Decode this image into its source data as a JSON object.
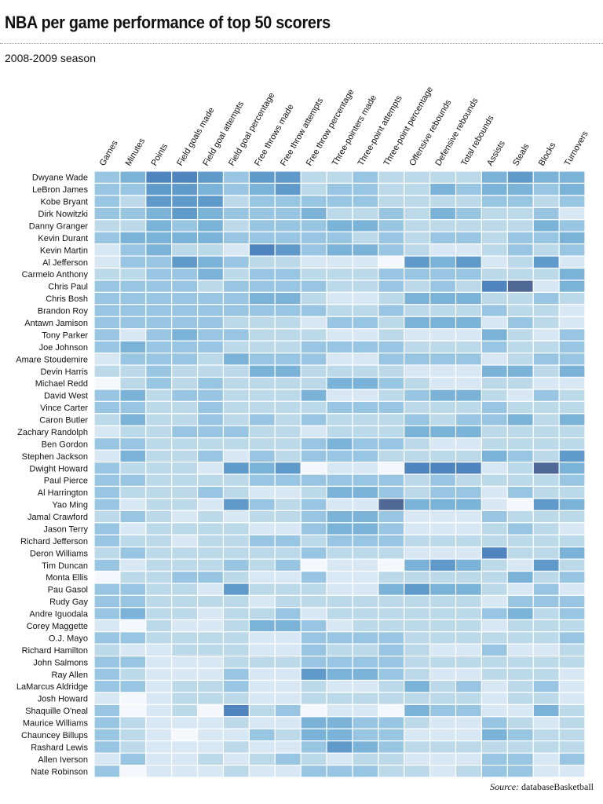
{
  "chart_data": {
    "type": "heatmap",
    "title": "NBA per game performance of top 50 scorers",
    "subtitle": "2008-2009 season",
    "source_label": "Source:",
    "source": "databaseBasketball",
    "columns": [
      "Games",
      "Minutes",
      "Points",
      "Field goals made",
      "Field goal attempts",
      "Field goal percentage",
      "Free throws made",
      "Free throw attempts",
      "Free throw percentage",
      "Three-pointers made",
      "Three-point attempts",
      "Three-point percentage",
      "Offensive rebounds",
      "Defensive rebounds",
      "Total rebounds",
      "Assists",
      "Steals",
      "Blocks",
      "Turnovers"
    ],
    "rows": [
      "Dwyane Wade",
      "LeBron James",
      "Kobe Bryant",
      "Dirk Nowitzki",
      "Danny Granger",
      "Kevin Durant",
      "Kevin Martin",
      "Al Jefferson",
      "Carmelo Anthony",
      "Chris Paul",
      "Chris Bosh",
      "Brandon Roy",
      "Antawn Jamison",
      "Tony Parker",
      "Joe Johnson",
      "Amare Stoudemire",
      "Devin Harris",
      "Michael Redd",
      "David West",
      "Vince Carter",
      "Caron Butler",
      "Zachary Randolph",
      "Ben Gordon",
      "Stephen Jackson",
      "Dwight Howard",
      "Paul Pierce",
      "Al Harrington",
      "Yao Ming",
      "Jamal Crawford",
      "Jason Terry",
      "Richard Jefferson",
      "Deron Williams",
      "Tim Duncan",
      "Monta Ellis",
      "Pau Gasol",
      "Rudy Gay",
      "Andre Iguodala",
      "Corey Maggette",
      "O.J. Mayo",
      "Richard Hamilton",
      "John Salmons",
      "Ray Allen",
      "LaMarcus Aldridge",
      "Josh Howard",
      "Shaquille O'neal",
      "Maurice Williams",
      "Chauncey Billups",
      "Rashard Lewis",
      "Allen Iverson",
      "Nate Robinson"
    ],
    "value_scale": "relative intensity level 0 (lightest) to 7 (darkest) within each column",
    "values": [
      [
        3,
        4,
        6,
        6,
        5,
        3,
        5,
        5,
        2,
        2,
        3,
        2,
        2,
        2,
        2,
        4,
        5,
        4,
        4
      ],
      [
        3,
        3,
        5,
        5,
        4,
        3,
        4,
        5,
        2,
        3,
        3,
        2,
        2,
        4,
        3,
        4,
        4,
        3,
        4
      ],
      [
        3,
        2,
        5,
        5,
        5,
        2,
        3,
        3,
        3,
        3,
        3,
        2,
        2,
        2,
        2,
        3,
        3,
        2,
        3
      ],
      [
        3,
        3,
        4,
        5,
        4,
        3,
        3,
        3,
        4,
        2,
        2,
        3,
        2,
        4,
        3,
        2,
        2,
        3,
        1
      ],
      [
        2,
        2,
        4,
        3,
        4,
        2,
        3,
        3,
        3,
        4,
        4,
        3,
        2,
        2,
        2,
        2,
        2,
        4,
        3
      ],
      [
        3,
        4,
        4,
        4,
        4,
        3,
        3,
        3,
        3,
        3,
        2,
        3,
        2,
        3,
        3,
        2,
        3,
        3,
        4
      ],
      [
        1,
        3,
        4,
        2,
        2,
        1,
        6,
        5,
        3,
        4,
        4,
        3,
        2,
        1,
        1,
        2,
        3,
        2,
        3
      ],
      [
        1,
        3,
        3,
        5,
        4,
        3,
        2,
        2,
        1,
        1,
        1,
        0,
        5,
        4,
        5,
        1,
        2,
        5,
        1
      ],
      [
        2,
        2,
        3,
        3,
        4,
        2,
        3,
        3,
        2,
        2,
        2,
        3,
        3,
        3,
        3,
        2,
        2,
        2,
        4
      ],
      [
        3,
        3,
        3,
        3,
        2,
        3,
        3,
        3,
        3,
        2,
        2,
        3,
        2,
        3,
        2,
        6,
        7,
        1,
        4
      ],
      [
        3,
        3,
        3,
        3,
        3,
        3,
        4,
        4,
        2,
        1,
        1,
        2,
        4,
        4,
        4,
        2,
        2,
        3,
        2
      ],
      [
        3,
        3,
        3,
        3,
        3,
        3,
        3,
        3,
        3,
        2,
        2,
        3,
        2,
        2,
        2,
        3,
        2,
        2,
        1
      ],
      [
        3,
        3,
        3,
        3,
        3,
        2,
        2,
        2,
        1,
        3,
        3,
        2,
        4,
        4,
        4,
        1,
        3,
        2,
        1
      ],
      [
        3,
        1,
        3,
        4,
        3,
        3,
        2,
        2,
        2,
        1,
        1,
        2,
        1,
        1,
        1,
        4,
        2,
        1,
        3
      ],
      [
        3,
        4,
        3,
        3,
        3,
        2,
        2,
        2,
        3,
        3,
        3,
        3,
        2,
        2,
        2,
        3,
        2,
        2,
        3
      ],
      [
        1,
        3,
        3,
        3,
        2,
        4,
        3,
        3,
        3,
        1,
        1,
        3,
        3,
        3,
        3,
        1,
        2,
        3,
        3
      ],
      [
        2,
        2,
        3,
        2,
        2,
        2,
        4,
        4,
        2,
        2,
        2,
        2,
        1,
        1,
        1,
        4,
        4,
        2,
        4
      ],
      [
        0,
        2,
        3,
        2,
        3,
        2,
        2,
        2,
        2,
        4,
        4,
        3,
        2,
        1,
        1,
        2,
        2,
        1,
        1
      ],
      [
        3,
        4,
        2,
        3,
        3,
        2,
        2,
        2,
        4,
        1,
        1,
        2,
        3,
        4,
        4,
        2,
        1,
        3,
        2
      ],
      [
        3,
        3,
        2,
        2,
        3,
        2,
        2,
        2,
        2,
        3,
        3,
        3,
        2,
        2,
        2,
        3,
        2,
        2,
        2
      ],
      [
        2,
        4,
        2,
        2,
        3,
        2,
        3,
        2,
        3,
        2,
        2,
        2,
        3,
        2,
        3,
        3,
        4,
        2,
        4
      ],
      [
        1,
        2,
        2,
        3,
        3,
        3,
        2,
        2,
        1,
        2,
        2,
        2,
        4,
        4,
        4,
        2,
        2,
        2,
        2
      ],
      [
        3,
        3,
        2,
        2,
        2,
        2,
        2,
        2,
        3,
        4,
        3,
        3,
        2,
        1,
        1,
        2,
        2,
        2,
        2
      ],
      [
        1,
        4,
        2,
        2,
        3,
        1,
        3,
        2,
        3,
        3,
        3,
        2,
        2,
        2,
        2,
        4,
        3,
        2,
        5
      ],
      [
        3,
        2,
        2,
        2,
        1,
        5,
        4,
        5,
        0,
        1,
        1,
        0,
        6,
        6,
        6,
        1,
        2,
        7,
        4
      ],
      [
        3,
        3,
        2,
        2,
        2,
        2,
        3,
        3,
        3,
        3,
        3,
        3,
        2,
        3,
        2,
        2,
        2,
        2,
        3
      ],
      [
        3,
        2,
        2,
        2,
        3,
        2,
        1,
        1,
        2,
        4,
        4,
        3,
        2,
        3,
        3,
        1,
        3,
        2,
        2
      ],
      [
        3,
        1,
        2,
        2,
        1,
        5,
        3,
        2,
        3,
        1,
        1,
        7,
        4,
        4,
        4,
        1,
        0,
        5,
        4
      ],
      [
        2,
        3,
        2,
        1,
        2,
        1,
        2,
        2,
        3,
        4,
        4,
        3,
        1,
        1,
        1,
        3,
        2,
        2,
        2
      ],
      [
        3,
        1,
        2,
        2,
        2,
        2,
        1,
        1,
        3,
        4,
        4,
        3,
        1,
        1,
        1,
        2,
        3,
        2,
        1
      ],
      [
        3,
        2,
        2,
        1,
        2,
        2,
        3,
        3,
        2,
        3,
        3,
        3,
        2,
        2,
        2,
        2,
        2,
        2,
        2
      ],
      [
        2,
        3,
        2,
        2,
        2,
        2,
        2,
        2,
        3,
        2,
        2,
        2,
        1,
        1,
        1,
        6,
        2,
        2,
        4
      ],
      [
        3,
        1,
        2,
        2,
        2,
        3,
        2,
        3,
        0,
        1,
        1,
        0,
        4,
        5,
        4,
        2,
        1,
        5,
        2
      ],
      [
        0,
        2,
        2,
        3,
        3,
        2,
        1,
        1,
        3,
        1,
        1,
        2,
        2,
        2,
        2,
        2,
        4,
        2,
        3
      ],
      [
        3,
        3,
        2,
        2,
        1,
        5,
        2,
        2,
        2,
        1,
        1,
        4,
        5,
        4,
        4,
        2,
        1,
        3,
        1
      ],
      [
        3,
        3,
        2,
        2,
        2,
        2,
        1,
        2,
        2,
        2,
        2,
        2,
        2,
        2,
        2,
        1,
        3,
        3,
        3
      ],
      [
        3,
        4,
        2,
        2,
        1,
        2,
        2,
        3,
        1,
        2,
        2,
        2,
        2,
        2,
        2,
        3,
        4,
        2,
        3
      ],
      [
        1,
        0,
        2,
        1,
        1,
        2,
        4,
        4,
        3,
        1,
        2,
        2,
        2,
        2,
        2,
        1,
        2,
        2,
        2
      ],
      [
        3,
        3,
        2,
        2,
        2,
        2,
        1,
        1,
        3,
        3,
        3,
        3,
        2,
        2,
        2,
        2,
        2,
        2,
        3
      ],
      [
        2,
        1,
        1,
        2,
        2,
        2,
        1,
        1,
        3,
        2,
        2,
        3,
        2,
        1,
        1,
        3,
        1,
        1,
        2
      ],
      [
        3,
        3,
        1,
        1,
        1,
        2,
        2,
        2,
        3,
        3,
        3,
        3,
        2,
        2,
        2,
        2,
        2,
        2,
        2
      ],
      [
        3,
        2,
        1,
        1,
        1,
        3,
        1,
        1,
        5,
        4,
        4,
        3,
        2,
        1,
        1,
        2,
        2,
        2,
        1
      ],
      [
        3,
        3,
        1,
        2,
        2,
        3,
        1,
        1,
        2,
        1,
        1,
        2,
        4,
        2,
        3,
        1,
        2,
        3,
        1
      ],
      [
        1,
        0,
        1,
        2,
        2,
        2,
        1,
        1,
        2,
        2,
        2,
        2,
        2,
        2,
        2,
        1,
        2,
        2,
        1
      ],
      [
        3,
        0,
        1,
        2,
        0,
        6,
        2,
        3,
        0,
        1,
        1,
        0,
        4,
        3,
        3,
        1,
        1,
        4,
        2
      ],
      [
        3,
        2,
        1,
        1,
        1,
        2,
        1,
        1,
        4,
        4,
        3,
        3,
        2,
        1,
        1,
        3,
        2,
        1,
        2
      ],
      [
        3,
        2,
        1,
        0,
        1,
        1,
        3,
        2,
        4,
        4,
        3,
        3,
        1,
        1,
        1,
        4,
        3,
        2,
        2
      ],
      [
        3,
        2,
        1,
        1,
        1,
        2,
        1,
        1,
        3,
        5,
        4,
        3,
        2,
        2,
        2,
        2,
        2,
        2,
        2
      ],
      [
        1,
        3,
        1,
        1,
        2,
        1,
        2,
        3,
        2,
        1,
        2,
        2,
        1,
        1,
        1,
        3,
        3,
        1,
        3
      ],
      [
        3,
        0,
        1,
        1,
        1,
        2,
        1,
        1,
        3,
        3,
        3,
        2,
        2,
        1,
        2,
        3,
        3,
        1,
        1
      ]
    ],
    "colors": [
      "#f4f8fc",
      "#d8e7f4",
      "#bcd9ea",
      "#98c5e2",
      "#7ab2d8",
      "#5f9acb",
      "#4f84bf",
      "#4f6895"
    ],
    "grid": false,
    "legend": "none"
  }
}
